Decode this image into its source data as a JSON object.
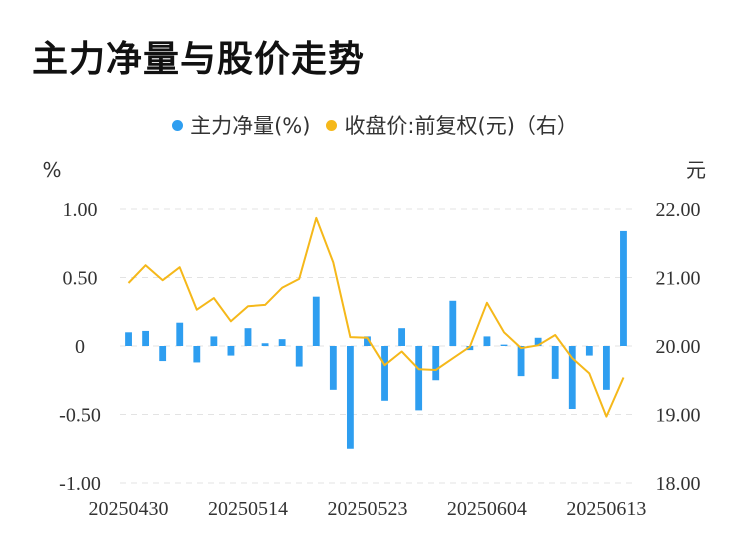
{
  "title": "主力净量与股价走势",
  "colors": {
    "bar": "#2e9ef0",
    "line": "#f5b81a",
    "grid": "#e3e3e3",
    "text": "#333333"
  },
  "legend": {
    "items": [
      {
        "label": "主力净量(%)",
        "color": "#2e9ef0"
      },
      {
        "label": "收盘价:前复权(元)（右）",
        "color": "#f5b81a"
      }
    ]
  },
  "axes": {
    "left_unit": "%",
    "right_unit": "元",
    "left_ticks": [
      "1.00",
      "0.50",
      "0",
      "-0.50",
      "-1.00"
    ],
    "right_ticks": [
      "22.00",
      "21.00",
      "20.00",
      "19.00",
      "18.00"
    ],
    "x_ticks": [
      "20250430",
      "20250514",
      "20250523",
      "20250604",
      "20250613"
    ]
  },
  "chart_data": {
    "type": "bar",
    "combo": "bar + line (dual axis)",
    "dates": [
      "20250430",
      "20250506",
      "20250507",
      "20250508",
      "20250509",
      "20250512",
      "20250513",
      "20250514",
      "20250515",
      "20250516",
      "20250519",
      "20250520",
      "20250521",
      "20250522",
      "20250523",
      "20250526",
      "20250527",
      "20250528",
      "20250529",
      "20250530",
      "20250603",
      "20250604",
      "20250605",
      "20250606",
      "20250609",
      "20250610",
      "20250611",
      "20250612",
      "20250613",
      "20250616"
    ],
    "series": [
      {
        "name": "主力净量(%)",
        "axis": "left",
        "kind": "bar",
        "values": [
          0.1,
          0.11,
          -0.11,
          0.17,
          -0.12,
          0.07,
          -0.07,
          0.13,
          0.02,
          0.05,
          -0.15,
          0.36,
          -0.32,
          -0.75,
          0.07,
          -0.4,
          0.13,
          -0.47,
          -0.25,
          0.33,
          -0.03,
          0.07,
          0.01,
          -0.22,
          0.06,
          -0.24,
          -0.46,
          -0.07,
          -0.32,
          0.84
        ]
      },
      {
        "name": "收盘价:前复权(元)（右）",
        "axis": "right",
        "kind": "line",
        "values": [
          20.92,
          21.18,
          20.96,
          21.15,
          20.53,
          20.7,
          20.36,
          20.58,
          20.6,
          20.85,
          20.98,
          21.87,
          21.22,
          20.13,
          20.12,
          19.72,
          19.92,
          19.66,
          19.65,
          19.82,
          19.99,
          20.63,
          20.2,
          19.97,
          20.01,
          20.16,
          19.82,
          19.6,
          18.97,
          19.54
        ]
      }
    ],
    "y_left_lim": [
      -1.0,
      1.0
    ],
    "y_right_lim": [
      18.0,
      22.0
    ],
    "grid": true,
    "legend_position": "top"
  }
}
